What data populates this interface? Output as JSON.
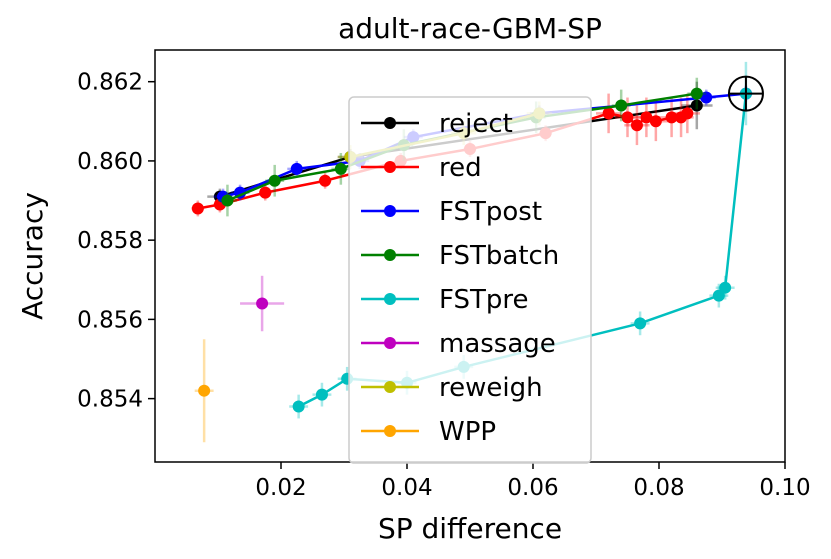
{
  "chart_data": {
    "type": "scatter",
    "title": "adult-race-GBM-SP",
    "xlabel": "SP difference",
    "ylabel": "Accuracy",
    "xlim": [
      0.0,
      0.1
    ],
    "ylim": [
      0.8524,
      0.8628
    ],
    "xticks": [
      0.02,
      0.04,
      0.06,
      0.08,
      0.1
    ],
    "xtick_labels": [
      "0.02",
      "0.04",
      "0.06",
      "0.08",
      "0.10"
    ],
    "yticks": [
      0.854,
      0.856,
      0.858,
      0.86,
      0.862
    ],
    "ytick_labels": [
      "0.854",
      "0.856",
      "0.858",
      "0.860",
      "0.862"
    ],
    "grid": false,
    "legend_position": "center",
    "series": [
      {
        "name": "reject",
        "color": "#000000",
        "points": [
          {
            "x": 0.0103,
            "y": 0.8591,
            "xerr": 0.002,
            "yerr": 0.0002
          },
          {
            "x": 0.031,
            "y": 0.8601,
            "xerr": 0.002,
            "yerr": 0.0002
          },
          {
            "x": 0.086,
            "y": 0.8614,
            "xerr": 0.0025,
            "yerr": 0.0006
          }
        ]
      },
      {
        "name": "red",
        "color": "#ff0000",
        "points": [
          {
            "x": 0.0068,
            "y": 0.8588,
            "xerr": 0.001,
            "yerr": 0.0002
          },
          {
            "x": 0.0103,
            "y": 0.8589,
            "xerr": 0.001,
            "yerr": 0.0002
          },
          {
            "x": 0.0175,
            "y": 0.8592,
            "xerr": 0.001,
            "yerr": 0.0002
          },
          {
            "x": 0.027,
            "y": 0.8595,
            "xerr": 0.001,
            "yerr": 0.0002
          },
          {
            "x": 0.039,
            "y": 0.86,
            "xerr": 0.001,
            "yerr": 0.0002
          },
          {
            "x": 0.05,
            "y": 0.8603,
            "xerr": 0.001,
            "yerr": 0.0002
          },
          {
            "x": 0.062,
            "y": 0.8607,
            "xerr": 0.001,
            "yerr": 0.0002
          },
          {
            "x": 0.072,
            "y": 0.8612,
            "xerr": 0.002,
            "yerr": 0.0005
          },
          {
            "x": 0.075,
            "y": 0.8611,
            "xerr": 0.002,
            "yerr": 0.0005
          },
          {
            "x": 0.0765,
            "y": 0.8609,
            "xerr": 0.002,
            "yerr": 0.0005
          },
          {
            "x": 0.078,
            "y": 0.8611,
            "xerr": 0.002,
            "yerr": 0.0005
          },
          {
            "x": 0.0795,
            "y": 0.861,
            "xerr": 0.002,
            "yerr": 0.0005
          },
          {
            "x": 0.082,
            "y": 0.8611,
            "xerr": 0.002,
            "yerr": 0.0005
          },
          {
            "x": 0.0835,
            "y": 0.8611,
            "xerr": 0.002,
            "yerr": 0.0005
          },
          {
            "x": 0.0845,
            "y": 0.8612,
            "xerr": 0.002,
            "yerr": 0.0005
          }
        ]
      },
      {
        "name": "FSTpost",
        "color": "#0000ff",
        "points": [
          {
            "x": 0.0108,
            "y": 0.8591,
            "xerr": 0.0015,
            "yerr": 0.0002
          },
          {
            "x": 0.0135,
            "y": 0.8592,
            "xerr": 0.0015,
            "yerr": 0.0002
          },
          {
            "x": 0.0225,
            "y": 0.8598,
            "xerr": 0.0015,
            "yerr": 0.0002
          },
          {
            "x": 0.0325,
            "y": 0.86,
            "xerr": 0.0015,
            "yerr": 0.0002
          },
          {
            "x": 0.041,
            "y": 0.8606,
            "xerr": 0.0015,
            "yerr": 0.0002
          },
          {
            "x": 0.061,
            "y": 0.8612,
            "xerr": 0.0015,
            "yerr": 0.0002
          },
          {
            "x": 0.0875,
            "y": 0.8616,
            "xerr": 0.0015,
            "yerr": 0.0002
          },
          {
            "x": 0.0938,
            "y": 0.8617,
            "xerr": 0.001,
            "yerr": 0.0002
          }
        ]
      },
      {
        "name": "FSTbatch",
        "color": "#008000",
        "points": [
          {
            "x": 0.0115,
            "y": 0.859,
            "xerr": 0.0015,
            "yerr": 0.0004
          },
          {
            "x": 0.019,
            "y": 0.8595,
            "xerr": 0.0015,
            "yerr": 0.0004
          },
          {
            "x": 0.0295,
            "y": 0.8598,
            "xerr": 0.0015,
            "yerr": 0.0004
          },
          {
            "x": 0.0395,
            "y": 0.8604,
            "xerr": 0.0015,
            "yerr": 0.0004
          },
          {
            "x": 0.0605,
            "y": 0.8611,
            "xerr": 0.0015,
            "yerr": 0.0004
          },
          {
            "x": 0.074,
            "y": 0.8614,
            "xerr": 0.0015,
            "yerr": 0.0004
          },
          {
            "x": 0.086,
            "y": 0.8617,
            "xerr": 0.0015,
            "yerr": 0.0004
          }
        ]
      },
      {
        "name": "FSTpre",
        "color": "#00bfbf",
        "points": [
          {
            "x": 0.0228,
            "y": 0.8538,
            "xerr": 0.0015,
            "yerr": 0.0003
          },
          {
            "x": 0.0265,
            "y": 0.8541,
            "xerr": 0.0015,
            "yerr": 0.0003
          },
          {
            "x": 0.0305,
            "y": 0.8545,
            "xerr": 0.0015,
            "yerr": 0.0003
          },
          {
            "x": 0.04,
            "y": 0.8544,
            "xerr": 0.0015,
            "yerr": 0.0003
          },
          {
            "x": 0.049,
            "y": 0.8548,
            "xerr": 0.0015,
            "yerr": 0.0003
          },
          {
            "x": 0.077,
            "y": 0.8559,
            "xerr": 0.0015,
            "yerr": 0.0003
          },
          {
            "x": 0.0895,
            "y": 0.8566,
            "xerr": 0.0015,
            "yerr": 0.0003
          },
          {
            "x": 0.0905,
            "y": 0.8568,
            "xerr": 0.0015,
            "yerr": 0.0003
          },
          {
            "x": 0.0938,
            "y": 0.8617,
            "xerr": 0.001,
            "yerr": 0.0008
          }
        ]
      },
      {
        "name": "massage",
        "color": "#bf00bf",
        "points": [
          {
            "x": 0.017,
            "y": 0.8564,
            "xerr": 0.0035,
            "yerr": 0.0007
          }
        ]
      },
      {
        "name": "reweigh",
        "color": "#bfbf00",
        "points": [
          {
            "x": 0.031,
            "y": 0.8601,
            "xerr": 0.002,
            "yerr": 0.0003
          },
          {
            "x": 0.049,
            "y": 0.8607,
            "xerr": 0.002,
            "yerr": 0.0003
          },
          {
            "x": 0.061,
            "y": 0.8612,
            "xerr": 0.002,
            "yerr": 0.0003
          }
        ]
      },
      {
        "name": "WPP",
        "color": "#ffa500",
        "points": [
          {
            "x": 0.0078,
            "y": 0.8542,
            "xerr": 0.0015,
            "yerr": 0.0013
          }
        ]
      }
    ],
    "reference_point": {
      "x": 0.0938,
      "y": 0.8617
    }
  }
}
